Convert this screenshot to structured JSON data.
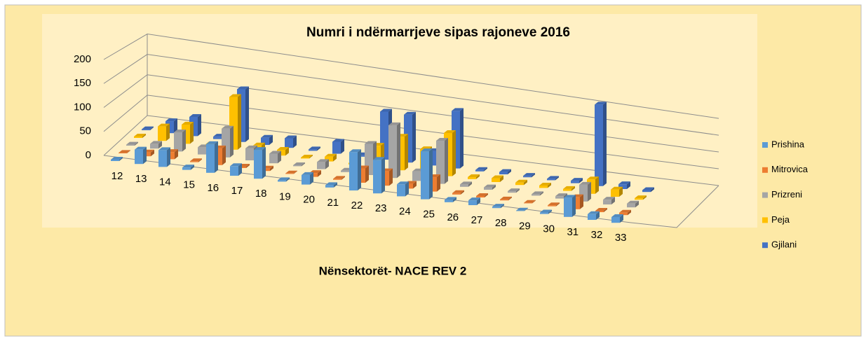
{
  "chart_data": {
    "type": "bar3d",
    "title": "Numri i ndërmarrjeve sipas rajoneve 2016",
    "x_label": "Nënsektorët- NACE  REV 2",
    "categories": [
      "12",
      "13",
      "14",
      "15",
      "16",
      "17",
      "18",
      "19",
      "20",
      "21",
      "22",
      "23",
      "24",
      "25",
      "26",
      "27",
      "28",
      "29",
      "30",
      "31",
      "32",
      "33"
    ],
    "ylim": [
      0,
      200
    ],
    "yticks": [
      0,
      50,
      100,
      150,
      200
    ],
    "grid": true,
    "legend": "right",
    "series": [
      {
        "name": "Prishina",
        "color": "#5b9bd5",
        "values": [
          3,
          30,
          35,
          5,
          60,
          20,
          60,
          3,
          20,
          5,
          80,
          70,
          25,
          100,
          5,
          10,
          3,
          1,
          3,
          40,
          12,
          12
        ]
      },
      {
        "name": "Mitrovica",
        "color": "#ed7d31",
        "values": [
          1,
          8,
          15,
          2,
          35,
          3,
          5,
          1,
          8,
          2,
          30,
          30,
          10,
          30,
          3,
          3,
          2,
          1,
          2,
          25,
          3,
          5
        ]
      },
      {
        "name": "Prizreni",
        "color": "#a5a5a5",
        "values": [
          2,
          10,
          40,
          15,
          60,
          25,
          20,
          2,
          15,
          3,
          65,
          110,
          20,
          90,
          5,
          5,
          3,
          3,
          5,
          35,
          10,
          8
        ]
      },
      {
        "name": "Peja",
        "color": "#ffc000",
        "values": [
          3,
          30,
          40,
          5,
          110,
          15,
          12,
          2,
          10,
          3,
          45,
          70,
          50,
          90,
          4,
          8,
          5,
          5,
          4,
          30,
          15,
          3
        ]
      },
      {
        "name": "Gjilani",
        "color": "#4472c4",
        "values": [
          2,
          25,
          40,
          5,
          110,
          15,
          20,
          3,
          25,
          3,
          100,
          100,
          30,
          120,
          3,
          5,
          3,
          3,
          5,
          170,
          10,
          4
        ]
      }
    ]
  }
}
